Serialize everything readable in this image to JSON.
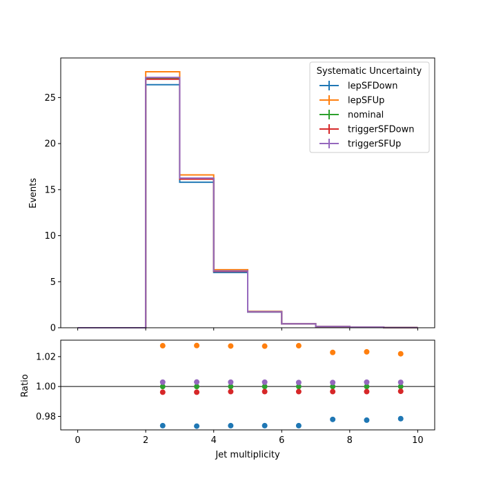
{
  "chart_data": [
    {
      "type": "line",
      "ylabel": "Events",
      "xlim": [
        -0.5,
        10.5
      ],
      "ylim": [
        0,
        29.3
      ],
      "x_edges": [
        0,
        1,
        2,
        3,
        4,
        5,
        6,
        7,
        8,
        9,
        10
      ],
      "yticks": [
        0,
        5,
        10,
        15,
        20,
        25
      ],
      "ytick_labels": [
        "0",
        "5",
        "10",
        "15",
        "20",
        "25"
      ],
      "grid": false,
      "legend": {
        "title": "Systematic Uncertainty",
        "placement": "top-right"
      },
      "series": [
        {
          "name": "lepSFDown",
          "color": "#1f77b4",
          "values": [
            0,
            0,
            26.4,
            15.8,
            6.0,
            1.7,
            0.42,
            0.13,
            0.07,
            0.02
          ]
        },
        {
          "name": "lepSFUp",
          "color": "#ff7f0e",
          "values": [
            0,
            0,
            27.8,
            16.6,
            6.3,
            1.78,
            0.44,
            0.14,
            0.07,
            0.02
          ]
        },
        {
          "name": "nominal",
          "color": "#2ca02c",
          "values": [
            0,
            0,
            27.1,
            16.2,
            6.15,
            1.74,
            0.43,
            0.135,
            0.07,
            0.02
          ]
        },
        {
          "name": "triggerSFDown",
          "color": "#d62728",
          "values": [
            0,
            0,
            27.0,
            16.14,
            6.13,
            1.73,
            0.428,
            0.134,
            0.07,
            0.02
          ]
        },
        {
          "name": "triggerSFUp",
          "color": "#9467bd",
          "values": [
            0,
            0,
            27.18,
            16.25,
            6.17,
            1.745,
            0.431,
            0.136,
            0.07,
            0.02
          ]
        }
      ]
    },
    {
      "type": "scatter",
      "xlabel": "Jet multiplicity",
      "ylabel": "Ratio",
      "xlim": [
        -0.5,
        10.5
      ],
      "ylim": [
        0.971,
        1.031
      ],
      "xticks": [
        0,
        2,
        4,
        6,
        8,
        10
      ],
      "xtick_labels": [
        "0",
        "2",
        "4",
        "6",
        "8",
        "10"
      ],
      "yticks": [
        0.98,
        1.0,
        1.02
      ],
      "ytick_labels": [
        "0.98",
        "1.00",
        "1.02"
      ],
      "reference_line": 1.0,
      "x": [
        2.5,
        3.5,
        4.5,
        5.5,
        6.5,
        7.5,
        8.5,
        9.5
      ],
      "series": [
        {
          "name": "lepSFDown",
          "color": "#1f77b4",
          "values": [
            0.9738,
            0.9735,
            0.9738,
            0.9738,
            0.9738,
            0.978,
            0.9775,
            0.9785
          ]
        },
        {
          "name": "lepSFUp",
          "color": "#ff7f0e",
          "values": [
            1.0273,
            1.0274,
            1.0271,
            1.027,
            1.0273,
            1.0228,
            1.0232,
            1.0219
          ]
        },
        {
          "name": "nominal",
          "color": "#2ca02c",
          "values": [
            1.0,
            1.0,
            1.0,
            1.0,
            1.0,
            1.0,
            1.0,
            1.0
          ]
        },
        {
          "name": "triggerSFDown",
          "color": "#d62728",
          "values": [
            0.9962,
            0.9962,
            0.9966,
            0.9966,
            0.9966,
            0.9966,
            0.9966,
            0.9968
          ]
        },
        {
          "name": "triggerSFUp",
          "color": "#9467bd",
          "values": [
            1.0029,
            1.003,
            1.0029,
            1.0029,
            1.0027,
            1.0027,
            1.0029,
            1.0028
          ]
        }
      ]
    }
  ]
}
